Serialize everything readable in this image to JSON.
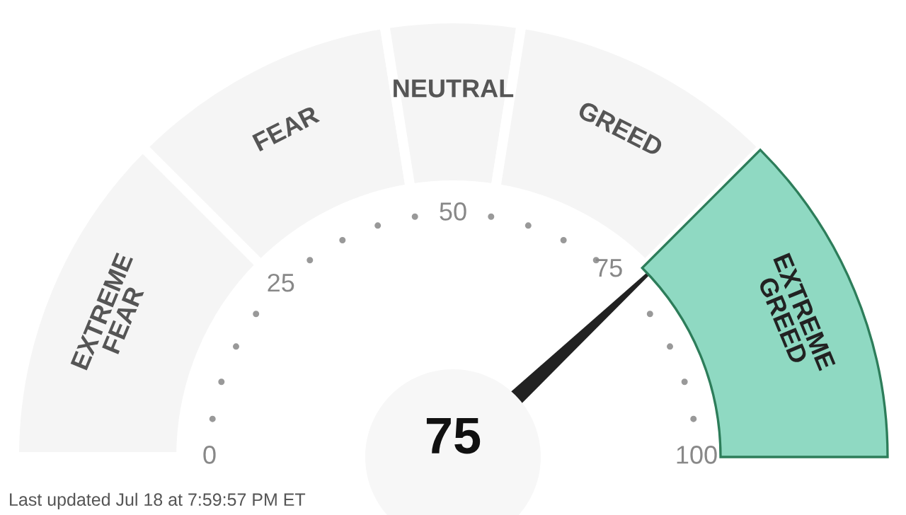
{
  "chart_data": {
    "type": "donut",
    "categories": [
      "EXTREME\nFEAR",
      "FEAR",
      "NEUTRAL",
      "GREED",
      "EXTREME\nGREED"
    ],
    "values": [
      25,
      20,
      10,
      20,
      25
    ],
    "colors": [
      "#f5f5f5",
      "#f5f5f5",
      "#f5f5f5",
      "#f5f5f5",
      "#8fd9c2"
    ],
    "needle": "EXTREME\nGREED",
    "annotations": [
      "75",
      "0",
      "25",
      "50",
      "75",
      "100",
      "Last updated Jul 18 at 7:59:57 PM ET"
    ]
  }
}
